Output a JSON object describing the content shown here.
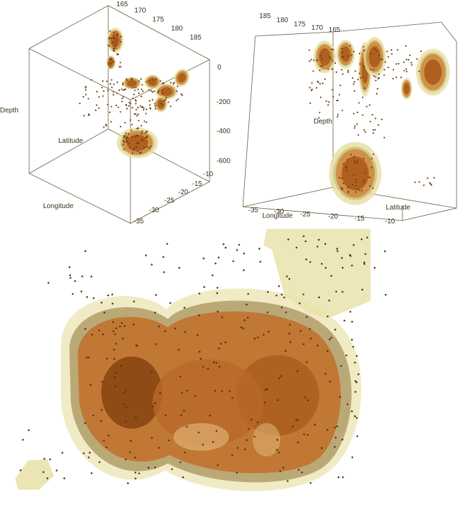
{
  "chart_data": [
    {
      "type": "scatter",
      "view": "3d-density-contours",
      "axes": {
        "longitude": {
          "label": "Longitude",
          "ticks": [
            "165",
            "170",
            "175",
            "180",
            "185"
          ]
        },
        "latitude": {
          "label": "Latitude",
          "ticks": [
            "-10",
            "-15",
            "-20",
            "-25",
            "-30",
            "-35"
          ]
        },
        "depth": {
          "label": "Depth",
          "ticks": [
            "0",
            "-200",
            "-400",
            "-600"
          ]
        }
      },
      "colors": {
        "core": "#a9581a",
        "mid": "#cf8a3e",
        "outer": "#e8df9d",
        "points": "#6b3d12"
      }
    },
    {
      "type": "scatter",
      "view": "3d-density-contours-rotated",
      "axes": {
        "longitude": {
          "label": "Longitude",
          "ticks": [
            "185",
            "180",
            "175",
            "170",
            "165"
          ]
        },
        "latitude": {
          "label": "Latitude",
          "ticks": [
            "-35",
            "-30",
            "-25",
            "-20",
            "-15",
            "-10"
          ]
        },
        "depth": {
          "label": "Depth",
          "ticks": []
        }
      },
      "colors": {
        "core": "#a9581a",
        "mid": "#cf8a3e",
        "outer": "#e8df9d",
        "points": "#6b3d12"
      }
    },
    {
      "type": "scatter",
      "view": "3d-density-zoomed-surface",
      "colors": {
        "core": "#8a4612",
        "mid": "#c07530",
        "outer": "#e9e3ab",
        "points": "#5a3510"
      }
    }
  ]
}
